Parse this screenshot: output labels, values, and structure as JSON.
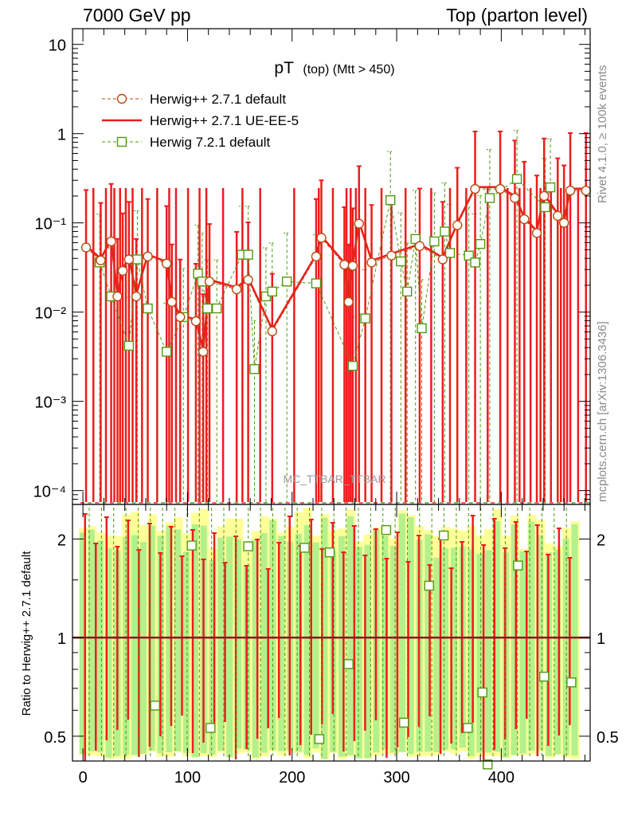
{
  "header": {
    "left": "7000 GeV pp",
    "right": "Top (parton level)"
  },
  "side_text": {
    "rivet": "Rivet 4.1.0, ≥ 100k events",
    "mcplots": "mcplots.cern.ch [arXiv:1306.3436]"
  },
  "chart_data": [
    {
      "type": "line",
      "panel": "main",
      "title": "pT",
      "title_sub": "(top) (Mtt > 450)",
      "watermark": "MC_TTBAR_TTBAR",
      "yscale": "log",
      "xlim": [
        -10,
        485
      ],
      "ylim": [
        7e-05,
        15
      ],
      "xlabel": "",
      "ylabel": "",
      "ytick_labels": [
        "10",
        "1",
        "10⁻¹",
        "10⁻²",
        "10⁻³",
        "10⁻⁴"
      ],
      "legend": [
        {
          "label": "Herwig++ 2.7.1 default",
          "color": "#b84a0e",
          "marker": "circle",
          "style": "dashed"
        },
        {
          "label": "Herwig++ 2.7.1 UE-EE-5",
          "color": "#ee1c1c",
          "marker": "none",
          "style": "solid"
        },
        {
          "label": "Herwig 7.2.1 default",
          "color": "#4f9a10",
          "marker": "square",
          "style": "dashed"
        }
      ],
      "series": [
        {
          "name": "Herwig++ 2.7.1 default",
          "points": [
            [
              3,
              0.053
            ],
            [
              17,
              0.038
            ],
            [
              27,
              0.062
            ],
            [
              33,
              0.015
            ],
            [
              38,
              0.029
            ],
            [
              44,
              0.039
            ],
            [
              51,
              0.015
            ],
            [
              62,
              0.042
            ],
            [
              80,
              0.035
            ],
            [
              85,
              0.013
            ],
            [
              93,
              0.0088
            ],
            [
              108,
              0.0079
            ],
            [
              115,
              0.0036
            ],
            [
              121,
              0.022
            ],
            [
              147,
              0.018
            ],
            [
              158,
              0.023
            ],
            [
              181,
              0.0061
            ],
            [
              223,
              0.042
            ],
            [
              228,
              0.068
            ],
            [
              250,
              0.034
            ],
            [
              254,
              0.013
            ],
            [
              258,
              0.033
            ],
            [
              264,
              0.098
            ],
            [
              276,
              0.036
            ],
            [
              295,
              0.043
            ],
            [
              322,
              0.055
            ],
            [
              344,
              0.039
            ],
            [
              358,
              0.094
            ],
            [
              375,
              0.24
            ],
            [
              399,
              0.24
            ],
            [
              413,
              0.19
            ],
            [
              422,
              0.11
            ],
            [
              434,
              0.077
            ],
            [
              441,
              0.2
            ],
            [
              454,
              0.12
            ],
            [
              460,
              0.1
            ],
            [
              466,
              0.23
            ],
            [
              481,
              0.23
            ]
          ]
        },
        {
          "name": "Herwig 7.2.1 default",
          "points": [
            [
              16,
              0.036
            ],
            [
              27,
              0.015
            ],
            [
              44,
              0.0042
            ],
            [
              52,
              0.039
            ],
            [
              62,
              0.011
            ],
            [
              80,
              0.0036
            ],
            [
              96,
              0.0088
            ],
            [
              110,
              0.027
            ],
            [
              114,
              0.022
            ],
            [
              119,
              0.011
            ],
            [
              128,
              0.011
            ],
            [
              152,
              0.044
            ],
            [
              158,
              0.044
            ],
            [
              164,
              0.0023
            ],
            [
              175,
              0.015
            ],
            [
              181,
              0.017
            ],
            [
              195,
              0.022
            ],
            [
              223,
              0.021
            ],
            [
              258,
              0.0025
            ],
            [
              270,
              0.0085
            ],
            [
              294,
              0.18
            ],
            [
              304,
              0.037
            ],
            [
              310,
              0.017
            ],
            [
              318,
              0.066
            ],
            [
              324,
              0.0066
            ],
            [
              336,
              0.062
            ],
            [
              346,
              0.08
            ],
            [
              351,
              0.046
            ],
            [
              369,
              0.043
            ],
            [
              375,
              0.036
            ],
            [
              380,
              0.058
            ],
            [
              389,
              0.19
            ],
            [
              415,
              0.31
            ],
            [
              442,
              0.15
            ],
            [
              447,
              0.25
            ]
          ]
        }
      ]
    },
    {
      "type": "line",
      "panel": "ratio",
      "ylabel": "Ratio to Herwig++ 2.7.1 default",
      "xlabel": "",
      "xlim": [
        -10,
        485
      ],
      "ylim": [
        0.42,
        2.55
      ],
      "yscale": "log",
      "xtick_labels": [
        "0",
        "100",
        "200",
        "300",
        "400"
      ],
      "ytick_labels": [
        "0.5",
        "1",
        "2"
      ],
      "reference": 1,
      "series": [
        {
          "name": "Herwig 7.2.1 default",
          "points": [
            [
              69,
              0.62
            ],
            [
              104,
              1.91
            ],
            [
              122,
              0.53
            ],
            [
              158,
              1.9
            ],
            [
              212,
              1.88
            ],
            [
              226,
              0.49
            ],
            [
              236,
              1.82
            ],
            [
              254,
              0.83
            ],
            [
              290,
              2.13
            ],
            [
              307,
              0.55
            ],
            [
              331,
              1.44
            ],
            [
              345,
              2.05
            ],
            [
              368,
              0.53
            ],
            [
              382,
              0.68
            ],
            [
              387,
              0.41
            ],
            [
              416,
              1.66
            ],
            [
              441,
              0.76
            ],
            [
              467,
              0.73
            ]
          ]
        }
      ]
    }
  ]
}
